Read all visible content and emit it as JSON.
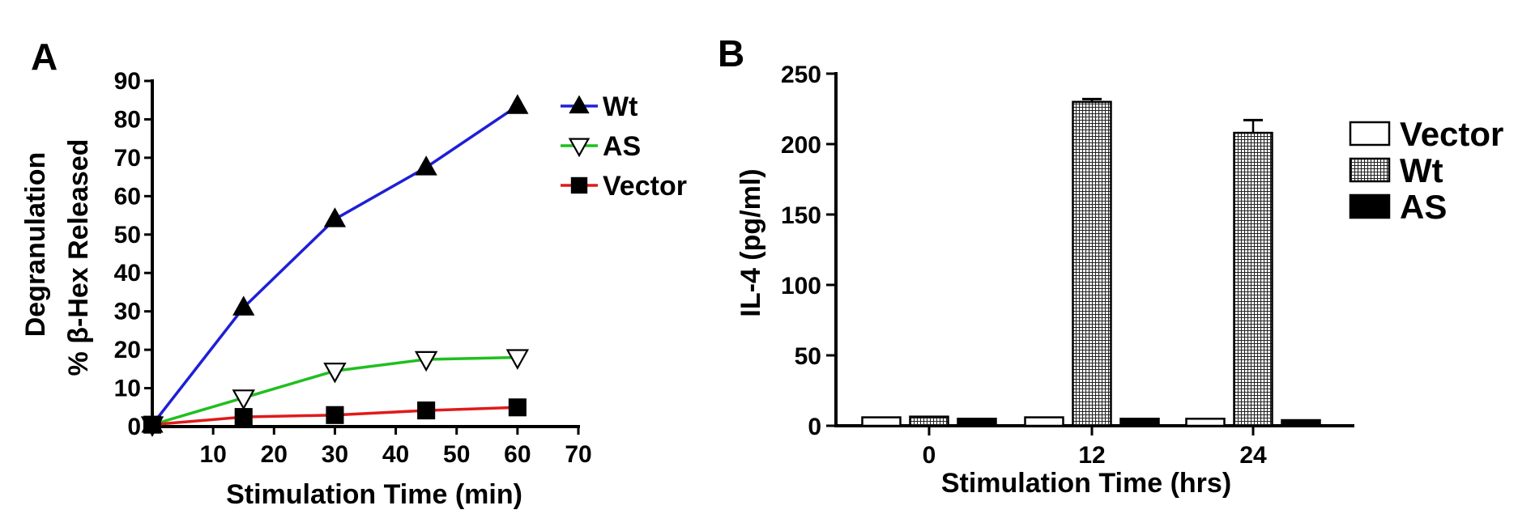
{
  "colors": {
    "wt_line": "#1f1fd6",
    "as_line": "#1fbf1f",
    "vector_line": "#e01a1a",
    "axis": "#000000"
  },
  "chart_data": [
    {
      "panel": "A",
      "type": "line",
      "xlabel": "Stimulation Time (min)",
      "ylabel_line1": "Degranulation",
      "ylabel_line2": "% β-Hex Released",
      "xlim": [
        0,
        70
      ],
      "ylim": [
        0,
        90
      ],
      "xticks": [
        10,
        20,
        30,
        40,
        50,
        60,
        70
      ],
      "yticks": [
        0,
        10,
        20,
        30,
        40,
        50,
        60,
        70,
        80,
        90
      ],
      "x": [
        0,
        15,
        30,
        45,
        60
      ],
      "series": [
        {
          "name": "Wt",
          "marker": "triangle-up-filled",
          "color": "#1f1fd6",
          "values": [
            0.5,
            31,
            54,
            67.5,
            83.5
          ]
        },
        {
          "name": "AS",
          "marker": "triangle-down-open",
          "color": "#1fbf1f",
          "values": [
            0.5,
            7.5,
            14.5,
            17.5,
            18
          ]
        },
        {
          "name": "Vector",
          "marker": "square-filled",
          "color": "#e01a1a",
          "values": [
            0.5,
            2.5,
            3,
            4.2,
            5
          ]
        }
      ],
      "legend_position": "top-right",
      "grid": false
    },
    {
      "panel": "B",
      "type": "bar",
      "xlabel": "Stimulation Time (hrs)",
      "ylabel": "IL-4 (pg/ml)",
      "ylim": [
        0,
        250
      ],
      "yticks": [
        0,
        50,
        100,
        150,
        200,
        250
      ],
      "categories": [
        "0",
        "12",
        "24"
      ],
      "series": [
        {
          "name": "Vector",
          "fill": "white",
          "values": [
            6,
            6,
            5
          ],
          "errors": [
            0,
            0,
            0
          ]
        },
        {
          "name": "Wt",
          "fill": "crosshatch",
          "values": [
            6.5,
            230,
            208
          ],
          "errors": [
            0,
            2,
            9
          ]
        },
        {
          "name": "AS",
          "fill": "black",
          "values": [
            5,
            5,
            4
          ],
          "errors": [
            0,
            0,
            0
          ]
        }
      ],
      "legend_position": "right",
      "grid": false
    }
  ]
}
